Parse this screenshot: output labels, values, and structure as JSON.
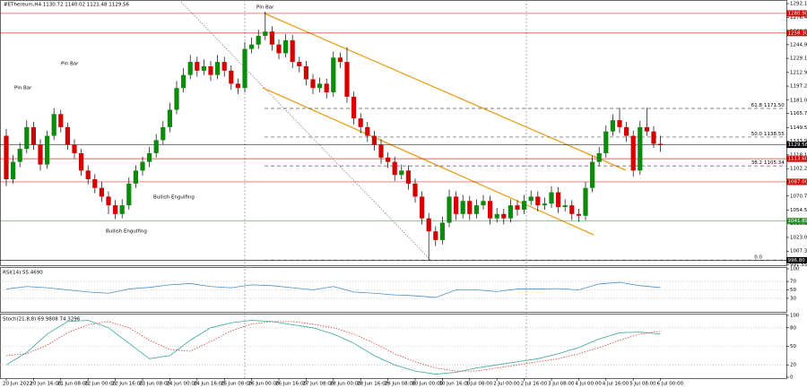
{
  "chart_data": {
    "type": "candlestick",
    "title": "#EThereum,H4  1130.72 1140.02 1121.48 1129.56",
    "up_color": "#0b8a0b",
    "down_color": "#d40000",
    "ylim": [
      990,
      1296.3
    ],
    "yticks": [
      1292.15,
      {
        "value": 1276.4,
        "label": "1276.40"
      },
      1260.25,
      1244.9,
      1229.15,
      1212.95,
      {
        "value": 1197.2,
        "label": "1197.20"
      },
      {
        "value": 1181,
        "label": "1181.00"
      },
      {
        "value": 1165.7,
        "label": "1165.70"
      },
      1149.55,
      {
        "value": 1133.9,
        "label": "1133.90"
      },
      {
        "value": 1118.1,
        "label": "1118.10"
      },
      1102.25,
      {
        "value": 1086.1,
        "label": "1086.10"
      },
      {
        "value": 1070.7,
        "label": "1070.70"
      },
      {
        "value": 1054.5,
        "label": "1054.50"
      },
      1038.85,
      1023.05,
      {
        "value": 1007.3,
        "label": "1007.30"
      },
      991.55
    ],
    "candles": [
      [
        1140,
        1148,
        1082,
        1090
      ],
      [
        1090,
        1118,
        1085,
        1110
      ],
      [
        1110,
        1132,
        1104,
        1125
      ],
      [
        1125,
        1158,
        1120,
        1150
      ],
      [
        1150,
        1156,
        1124,
        1130
      ],
      [
        1130,
        1136,
        1100,
        1107
      ],
      [
        1107,
        1146,
        1102,
        1140
      ],
      [
        1140,
        1172,
        1135,
        1165
      ],
      [
        1165,
        1170,
        1144,
        1150
      ],
      [
        1150,
        1155,
        1124,
        1130
      ],
      [
        1130,
        1136,
        1114,
        1120
      ],
      [
        1120,
        1125,
        1094,
        1100
      ],
      [
        1100,
        1106,
        1084,
        1090
      ],
      [
        1090,
        1096,
        1074,
        1080
      ],
      [
        1080,
        1087,
        1064,
        1070
      ],
      [
        1070,
        1076,
        1050,
        1060
      ],
      [
        1060,
        1066,
        1044,
        1050
      ],
      [
        1050,
        1067,
        1045,
        1060
      ],
      [
        1060,
        1092,
        1055,
        1085
      ],
      [
        1085,
        1106,
        1080,
        1100
      ],
      [
        1100,
        1116,
        1094,
        1110
      ],
      [
        1110,
        1127,
        1104,
        1120
      ],
      [
        1120,
        1142,
        1115,
        1135
      ],
      [
        1135,
        1157,
        1130,
        1150
      ],
      [
        1150,
        1178,
        1144,
        1170
      ],
      [
        1170,
        1203,
        1165,
        1195
      ],
      [
        1195,
        1218,
        1190,
        1210
      ],
      [
        1210,
        1233,
        1205,
        1225
      ],
      [
        1225,
        1231,
        1208,
        1215
      ],
      [
        1215,
        1228,
        1210,
        1220
      ],
      [
        1220,
        1226,
        1203,
        1210
      ],
      [
        1210,
        1233,
        1205,
        1225
      ],
      [
        1225,
        1231,
        1208,
        1215
      ],
      [
        1215,
        1221,
        1193,
        1200
      ],
      [
        1200,
        1206,
        1188,
        1195
      ],
      [
        1195,
        1248,
        1190,
        1240
      ],
      [
        1240,
        1253,
        1235,
        1245
      ],
      [
        1245,
        1262,
        1240,
        1255
      ],
      [
        1255,
        1283,
        1250,
        1260
      ],
      [
        1260,
        1266,
        1238,
        1245
      ],
      [
        1245,
        1251,
        1228,
        1235
      ],
      [
        1235,
        1257,
        1230,
        1250
      ],
      [
        1250,
        1256,
        1218,
        1225
      ],
      [
        1225,
        1231,
        1213,
        1220
      ],
      [
        1220,
        1226,
        1198,
        1205
      ],
      [
        1205,
        1211,
        1188,
        1195
      ],
      [
        1195,
        1207,
        1190,
        1200
      ],
      [
        1200,
        1206,
        1183,
        1190
      ],
      [
        1190,
        1237,
        1185,
        1230
      ],
      [
        1230,
        1236,
        1218,
        1225
      ],
      [
        1225,
        1242,
        1178,
        1185
      ],
      [
        1185,
        1191,
        1153,
        1160
      ],
      [
        1160,
        1166,
        1143,
        1150
      ],
      [
        1150,
        1156,
        1133,
        1140
      ],
      [
        1140,
        1146,
        1123,
        1130
      ],
      [
        1130,
        1136,
        1108,
        1115
      ],
      [
        1115,
        1121,
        1103,
        1110
      ],
      [
        1110,
        1116,
        1088,
        1095
      ],
      [
        1095,
        1107,
        1090,
        1100
      ],
      [
        1100,
        1106,
        1078,
        1085
      ],
      [
        1085,
        1091,
        1063,
        1070
      ],
      [
        1070,
        1076,
        1038,
        1045
      ],
      [
        1045,
        1051,
        997,
        1030
      ],
      [
        1030,
        1036,
        1013,
        1020
      ],
      [
        1020,
        1047,
        1015,
        1040
      ],
      [
        1040,
        1078,
        1035,
        1070
      ],
      [
        1070,
        1076,
        1043,
        1050
      ],
      [
        1050,
        1072,
        1045,
        1065
      ],
      [
        1065,
        1071,
        1043,
        1050
      ],
      [
        1050,
        1067,
        1045,
        1060
      ],
      [
        1060,
        1072,
        1055,
        1065
      ],
      [
        1065,
        1071,
        1038,
        1045
      ],
      [
        1045,
        1057,
        1040,
        1050
      ],
      [
        1050,
        1056,
        1038,
        1045
      ],
      [
        1045,
        1067,
        1040,
        1060
      ],
      [
        1060,
        1066,
        1048,
        1055
      ],
      [
        1055,
        1072,
        1050,
        1065
      ],
      [
        1065,
        1077,
        1060,
        1070
      ],
      [
        1070,
        1076,
        1053,
        1060
      ],
      [
        1060,
        1069,
        1055,
        1062
      ],
      [
        1062,
        1082,
        1057,
        1075
      ],
      [
        1075,
        1081,
        1051,
        1058
      ],
      [
        1058,
        1067,
        1053,
        1060
      ],
      [
        1060,
        1066,
        1043,
        1050
      ],
      [
        1050,
        1056,
        1041,
        1048
      ],
      [
        1048,
        1087,
        1043,
        1080
      ],
      [
        1080,
        1117,
        1075,
        1110
      ],
      [
        1110,
        1127,
        1105,
        1120
      ],
      [
        1120,
        1152,
        1115,
        1145
      ],
      [
        1145,
        1165,
        1140,
        1158
      ],
      [
        1158,
        1172,
        1143,
        1150
      ],
      [
        1150,
        1156,
        1133,
        1140
      ],
      [
        1140,
        1146,
        1093,
        1100
      ],
      [
        1100,
        1157,
        1095,
        1150
      ],
      [
        1150,
        1172,
        1140,
        1145
      ],
      [
        1145,
        1151,
        1126,
        1130.72
      ],
      [
        1130.72,
        1140.02,
        1121.48,
        1129.56
      ]
    ],
    "levels": [
      {
        "value": 1280.9,
        "label": "1280.90",
        "color": "#d40000"
      },
      {
        "value": 1258.3,
        "label": "1258.30",
        "color": "#d40000"
      },
      {
        "value": 1129.56,
        "label": "1129.56",
        "color": "#000000"
      },
      {
        "value": 1113.6,
        "label": "1113.60",
        "color": "#d40000"
      },
      {
        "value": 1087,
        "label": "1087.00",
        "color": "#d40000"
      },
      {
        "value": 1041.89,
        "label": "1041.89",
        "color": "#2e8b2e"
      },
      {
        "value": 996.8,
        "label": "996.80",
        "color": "#000000"
      }
    ],
    "fib_levels": [
      {
        "ratio": "61.8",
        "price": 1171.5,
        "price_label": "1171.50"
      },
      {
        "ratio": "50.0",
        "price": 1138.55,
        "price_label": "1138.55"
      },
      {
        "ratio": "38.2",
        "price": 1105.34,
        "price_label": "1105.34"
      },
      {
        "ratio": "0.0",
        "price": 996.8
      }
    ],
    "annotations": [
      "Pin Bar",
      "Pin Bar",
      "Pin Bar",
      "Bullish Engulfing",
      "Bullish Engulfing"
    ],
    "time_labels": [
      "20 Jun 2022",
      "20 Jun 16:00",
      "21 Jun 08:00",
      "22 Jun 00:00",
      "22 Jun 16:00",
      "23 Jun 08:00",
      "24 Jun 00:00",
      "24 Jun 16:00",
      "25 Jun 08:00",
      "26 Jun 00:00",
      "26 Jun 16:00",
      "27 Jun 08:00",
      "28 Jun 00:00",
      "28 Jun 16:00",
      "29 Jun 08:00",
      "30 Jun 00:00",
      "30 Jun 16:00",
      "1 Jul 08:00",
      "2 Jul 00:00",
      "2 Jul 16:00",
      "3 Jul 08:00",
      "4 Jul 00:00",
      "4 Jul 16:00",
      "5 Jul 08:00",
      "6 Jul 00:00"
    ],
    "indicators": [
      {
        "type": "line",
        "title": "RSI(14) 55.4690",
        "ylim": [
          0,
          100
        ],
        "yticks": [
          100,
          70,
          50,
          30
        ],
        "x": [
          0,
          3,
          6,
          9,
          12,
          15,
          18,
          21,
          24,
          27,
          30,
          33,
          36,
          39,
          42,
          45,
          48,
          51,
          54,
          57,
          60,
          63,
          66,
          69,
          72,
          75,
          78,
          81,
          84,
          87,
          90,
          93,
          96
        ],
        "series": [
          {
            "color": "#4a90c8",
            "values": [
              52,
              58,
              55,
              50,
              45,
              42,
              52,
              56,
              62,
              65,
              58,
              55,
              62,
              60,
              55,
              50,
              58,
              45,
              42,
              38,
              36,
              32,
              50,
              50,
              46,
              52,
              52,
              53,
              50,
              64,
              68,
              60,
              55.469
            ]
          }
        ]
      },
      {
        "type": "line",
        "title": "Stoch(21,8,8) 69.9808 74.3296",
        "ylim": [
          0,
          100
        ],
        "yticks": [
          100,
          80,
          50,
          20,
          0
        ],
        "x": [
          0,
          3,
          6,
          9,
          12,
          15,
          18,
          21,
          24,
          27,
          30,
          33,
          36,
          39,
          42,
          45,
          48,
          51,
          54,
          57,
          60,
          63,
          66,
          69,
          72,
          75,
          78,
          81,
          84,
          87,
          90,
          93,
          96
        ],
        "series": [
          {
            "color": "#3aa89a",
            "dash": false,
            "values": [
              20,
              40,
              70,
              90,
              92,
              80,
              55,
              30,
              35,
              60,
              80,
              88,
              92,
              90,
              85,
              80,
              70,
              55,
              35,
              20,
              10,
              5,
              8,
              15,
              20,
              25,
              30,
              38,
              48,
              62,
              72,
              73,
              69.9808
            ]
          },
          {
            "color": "#d04040",
            "dash": true,
            "values": [
              35,
              38,
              52,
              72,
              85,
              90,
              80,
              60,
              45,
              42,
              58,
              75,
              86,
              90,
              90,
              86,
              80,
              70,
              55,
              38,
              25,
              15,
              10,
              10,
              15,
              20,
              25,
              30,
              38,
              48,
              60,
              70,
              74.3296
            ]
          }
        ]
      }
    ]
  }
}
